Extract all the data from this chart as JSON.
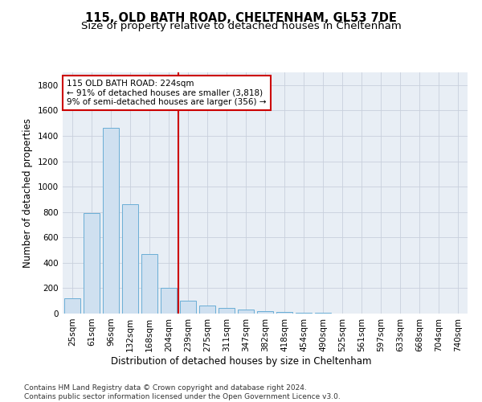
{
  "title1": "115, OLD BATH ROAD, CHELTENHAM, GL53 7DE",
  "title2": "Size of property relative to detached houses in Cheltenham",
  "xlabel": "Distribution of detached houses by size in Cheltenham",
  "ylabel": "Number of detached properties",
  "bar_labels": [
    "25sqm",
    "61sqm",
    "96sqm",
    "132sqm",
    "168sqm",
    "204sqm",
    "239sqm",
    "275sqm",
    "311sqm",
    "347sqm",
    "382sqm",
    "418sqm",
    "454sqm",
    "490sqm",
    "525sqm",
    "561sqm",
    "597sqm",
    "633sqm",
    "668sqm",
    "704sqm",
    "740sqm"
  ],
  "bar_values": [
    120,
    790,
    1460,
    860,
    470,
    200,
    100,
    65,
    45,
    30,
    20,
    12,
    8,
    5,
    3,
    2,
    1,
    1,
    1,
    1,
    1
  ],
  "bar_color": "#cfe0f0",
  "bar_edge_color": "#6aaed6",
  "grid_color": "#c8d0dc",
  "background_color": "#e8eef5",
  "vline_position": 5.5,
  "vline_color": "#cc0000",
  "annotation_text": "115 OLD BATH ROAD: 224sqm\n← 91% of detached houses are smaller (3,818)\n9% of semi-detached houses are larger (356) →",
  "annotation_box_color": "white",
  "annotation_box_edge": "#cc0000",
  "footer": "Contains HM Land Registry data © Crown copyright and database right 2024.\nContains public sector information licensed under the Open Government Licence v3.0.",
  "ylim": [
    0,
    1900
  ],
  "yticks": [
    0,
    200,
    400,
    600,
    800,
    1000,
    1200,
    1400,
    1600,
    1800
  ],
  "title1_fontsize": 10.5,
  "title2_fontsize": 9.5,
  "axis_label_fontsize": 8.5,
  "tick_fontsize": 7.5,
  "annot_fontsize": 7.5,
  "footer_fontsize": 6.5
}
